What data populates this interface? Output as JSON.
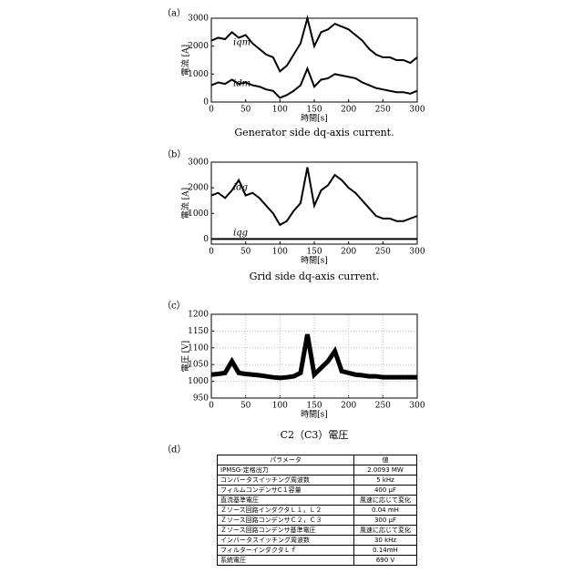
{
  "panels": [
    "（a）",
    "（b）",
    "（c）",
    "（d）"
  ],
  "chart_data": [
    {
      "type": "line",
      "caption": "Generator side dq-axis current.",
      "xlabel": "時間[s]",
      "ylabel": "電流 [A]",
      "x": [
        0,
        10,
        20,
        30,
        40,
        50,
        60,
        70,
        80,
        90,
        100,
        110,
        120,
        130,
        140,
        150,
        160,
        170,
        180,
        190,
        200,
        210,
        220,
        230,
        240,
        250,
        260,
        270,
        280,
        290,
        300
      ],
      "series": [
        {
          "name": "iqm",
          "color": "#000000",
          "values": [
            2200,
            2300,
            2250,
            2500,
            2300,
            2400,
            2100,
            1900,
            1700,
            1600,
            1100,
            1300,
            1700,
            2100,
            3000,
            2000,
            2500,
            2600,
            2800,
            2700,
            2600,
            2400,
            2200,
            1900,
            1700,
            1600,
            1600,
            1500,
            1500,
            1400,
            1600
          ]
        },
        {
          "name": "idm",
          "color": "#000000",
          "values": [
            600,
            700,
            650,
            800,
            650,
            700,
            600,
            550,
            450,
            400,
            150,
            250,
            400,
            600,
            1200,
            550,
            800,
            850,
            1000,
            950,
            900,
            850,
            700,
            600,
            500,
            450,
            400,
            350,
            350,
            300,
            400
          ]
        }
      ],
      "xlim": [
        0,
        300
      ],
      "xticks": [
        0,
        50,
        100,
        150,
        200,
        250,
        300
      ],
      "ylim": [
        0,
        3000
      ],
      "yticks": [
        0,
        1000,
        2000,
        3000
      ],
      "grid": false
    },
    {
      "type": "line",
      "caption": "Grid side dq-axis current.",
      "xlabel": "時間[s]",
      "ylabel": "電流 [A]",
      "x": [
        0,
        10,
        20,
        30,
        40,
        50,
        60,
        70,
        80,
        90,
        100,
        110,
        120,
        130,
        140,
        150,
        160,
        170,
        180,
        190,
        200,
        210,
        220,
        230,
        240,
        250,
        260,
        270,
        280,
        290,
        300
      ],
      "series": [
        {
          "name": "idg",
          "color": "#000000",
          "values": [
            1700,
            1800,
            1600,
            1900,
            2300,
            1700,
            1800,
            1600,
            1300,
            1000,
            550,
            700,
            1100,
            1400,
            2800,
            1300,
            1900,
            2100,
            2500,
            2300,
            2000,
            1800,
            1500,
            1200,
            900,
            800,
            800,
            700,
            700,
            800,
            900
          ]
        },
        {
          "name": "iqg",
          "color": "#000000",
          "values": [
            0,
            0,
            0,
            0,
            0,
            0,
            0,
            0,
            0,
            0,
            0,
            0,
            0,
            0,
            0,
            0,
            0,
            0,
            0,
            0,
            0,
            0,
            0,
            0,
            0,
            0,
            0,
            0,
            0,
            0,
            0
          ]
        }
      ],
      "xlim": [
        0,
        300
      ],
      "xticks": [
        0,
        50,
        100,
        150,
        200,
        250,
        300
      ],
      "ylim": [
        -200,
        3000
      ],
      "yticks": [
        0,
        1000,
        2000,
        3000
      ],
      "grid": false
    },
    {
      "type": "line",
      "caption": "C2（C3）電圧",
      "xlabel": "時間[s]",
      "ylabel": "電圧 [V]",
      "x": [
        0,
        10,
        20,
        30,
        40,
        50,
        60,
        70,
        80,
        90,
        100,
        110,
        120,
        130,
        140,
        150,
        160,
        170,
        180,
        190,
        200,
        210,
        220,
        230,
        240,
        250,
        260,
        270,
        280,
        290,
        300
      ],
      "series": [
        {
          "color": "#000000",
          "values": [
            1020,
            1022,
            1025,
            1060,
            1025,
            1022,
            1020,
            1018,
            1015,
            1012,
            1010,
            1012,
            1015,
            1025,
            1140,
            1020,
            1040,
            1060,
            1090,
            1030,
            1025,
            1020,
            1018,
            1015,
            1015,
            1012,
            1012,
            1012,
            1012,
            1012,
            1012
          ]
        }
      ],
      "xlim": [
        0,
        300
      ],
      "xticks": [
        0,
        50,
        100,
        150,
        200,
        250,
        300
      ],
      "ylim": [
        950,
        1200
      ],
      "yticks": [
        950,
        1000,
        1050,
        1100,
        1150,
        1200
      ],
      "grid": true
    }
  ],
  "table": {
    "header": [
      "パラメータ",
      "値"
    ],
    "rows": [
      [
        "IPMSG-定格出力",
        "2.0093 MW"
      ],
      [
        "コンバータスイッチング周波数",
        "5 kHz"
      ],
      [
        "フィルムコンデンサC１容量",
        "400 μF"
      ],
      [
        "直流基準電圧",
        "風速に応じて変化"
      ],
      [
        "Ｚソース回路インダクタＬ１，Ｌ２",
        "0.04 mH"
      ],
      [
        "Ｚソース回路コンデンサＣ２，Ｃ３",
        "300 μF"
      ],
      [
        "Ｚソース回路コンデンサ基準電圧",
        "風速に応じて変化"
      ],
      [
        "インバータスイッチング周波数",
        "30 kHz"
      ],
      [
        "フィルターインダクタＬｆ",
        "0.14mH"
      ],
      [
        "系統電圧",
        "690 V"
      ]
    ]
  }
}
